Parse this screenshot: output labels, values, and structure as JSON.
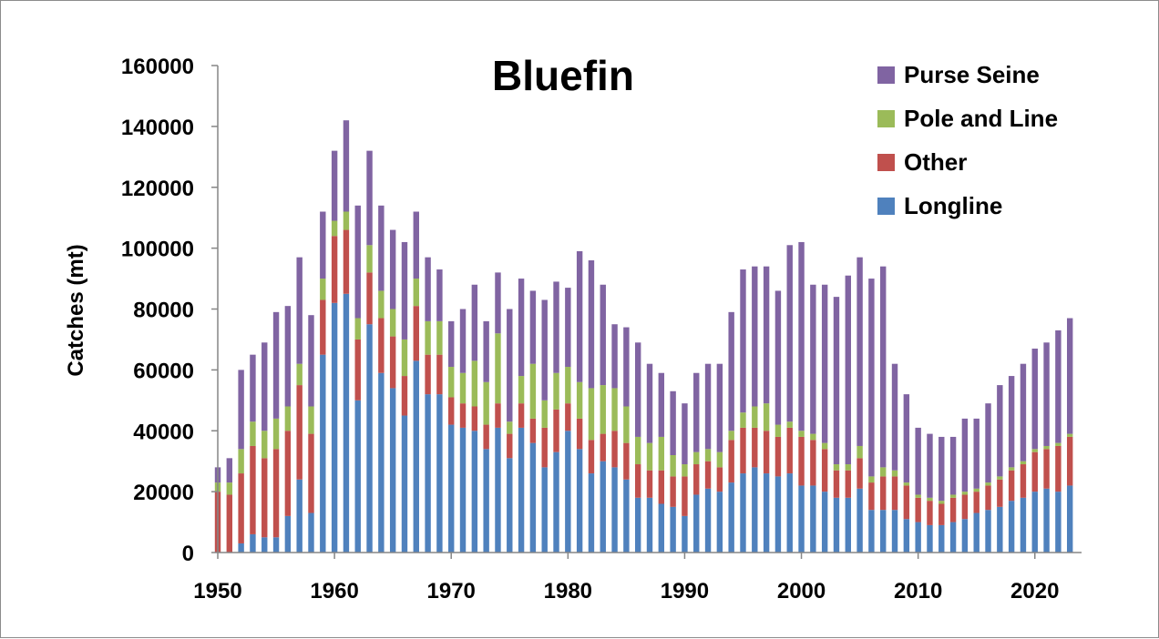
{
  "chart_data": {
    "type": "bar",
    "stacked": true,
    "title": "Bluefin",
    "xlabel": "",
    "ylabel": "Catches (mt)",
    "ylim": [
      0,
      160000
    ],
    "y_ticks": [
      "0",
      "20000",
      "40000",
      "60000",
      "80000",
      "100000",
      "120000",
      "140000",
      "160000"
    ],
    "x_ticks": [
      "1950",
      "1960",
      "1970",
      "1980",
      "1990",
      "2000",
      "2010",
      "2020"
    ],
    "grid": false,
    "legend_position": "top-right",
    "x": [
      1950,
      1951,
      1952,
      1953,
      1954,
      1955,
      1956,
      1957,
      1958,
      1959,
      1960,
      1961,
      1962,
      1963,
      1964,
      1965,
      1966,
      1967,
      1968,
      1969,
      1970,
      1971,
      1972,
      1973,
      1974,
      1975,
      1976,
      1977,
      1978,
      1979,
      1980,
      1981,
      1982,
      1983,
      1984,
      1985,
      1986,
      1987,
      1988,
      1989,
      1990,
      1991,
      1992,
      1993,
      1994,
      1995,
      1996,
      1997,
      1998,
      1999,
      2000,
      2001,
      2002,
      2003,
      2004,
      2005,
      2006,
      2007,
      2008,
      2009,
      2010,
      2011,
      2012,
      2013,
      2014,
      2015,
      2016,
      2017,
      2018,
      2019,
      2020,
      2021,
      2022,
      2023
    ],
    "series": [
      {
        "name": "Longline",
        "color": "#4f81bd",
        "values": [
          0,
          0,
          3000,
          6000,
          5000,
          5000,
          12000,
          24000,
          13000,
          65000,
          82000,
          85000,
          50000,
          75000,
          59000,
          54000,
          45000,
          63000,
          52000,
          52000,
          42000,
          41000,
          40000,
          34000,
          41000,
          31000,
          41000,
          36000,
          28000,
          33000,
          40000,
          34000,
          26000,
          30000,
          28000,
          24000,
          18000,
          18000,
          16000,
          15000,
          12000,
          19000,
          21000,
          20000,
          23000,
          26000,
          28000,
          26000,
          25000,
          26000,
          22000,
          22000,
          20000,
          18000,
          18000,
          21000,
          14000,
          14000,
          14000,
          11000,
          10000,
          9000,
          9000,
          10000,
          11000,
          13000,
          14000,
          15000,
          17000,
          18000,
          20000,
          21000,
          20000,
          22000
        ]
      },
      {
        "name": "Other",
        "color": "#c0504d",
        "values": [
          20000,
          19000,
          23000,
          29000,
          26000,
          29000,
          28000,
          31000,
          26000,
          18000,
          22000,
          21000,
          20000,
          17000,
          18000,
          17000,
          13000,
          18000,
          13000,
          13000,
          9000,
          8000,
          8000,
          8000,
          8000,
          8000,
          8000,
          8000,
          13000,
          14000,
          9000,
          10000,
          11000,
          9000,
          12000,
          12000,
          11000,
          9000,
          11000,
          10000,
          13000,
          10000,
          9000,
          8000,
          14000,
          15000,
          13000,
          14000,
          13000,
          15000,
          16000,
          15000,
          14000,
          9000,
          9000,
          10000,
          9000,
          11000,
          11000,
          11000,
          8000,
          8000,
          7000,
          8000,
          8000,
          7000,
          8000,
          9000,
          10000,
          11000,
          13000,
          13000,
          15000,
          16000
        ]
      },
      {
        "name": "Pole and Line",
        "color": "#9bbb59",
        "values": [
          3000,
          4000,
          8000,
          8000,
          9000,
          10000,
          8000,
          7000,
          9000,
          7000,
          5000,
          6000,
          7000,
          9000,
          9000,
          9000,
          12000,
          9000,
          11000,
          11000,
          10000,
          10000,
          15000,
          14000,
          23000,
          4000,
          9000,
          18000,
          9000,
          12000,
          12000,
          12000,
          17000,
          16000,
          14000,
          12000,
          9000,
          9000,
          11000,
          7000,
          4000,
          4000,
          4000,
          5000,
          3000,
          5000,
          7000,
          9000,
          4000,
          2000,
          2000,
          2000,
          2000,
          2000,
          2000,
          4000,
          2000,
          3000,
          2000,
          1000,
          1000,
          1000,
          1000,
          1000,
          1000,
          1000,
          1000,
          1000,
          1000,
          1000,
          1000,
          1000,
          1000,
          1000
        ]
      },
      {
        "name": "Purse Seine",
        "color": "#8064a2",
        "values": [
          5000,
          8000,
          26000,
          22000,
          29000,
          35000,
          33000,
          35000,
          30000,
          22000,
          23000,
          30000,
          37000,
          31000,
          28000,
          26000,
          32000,
          22000,
          21000,
          17000,
          15000,
          21000,
          25000,
          20000,
          20000,
          37000,
          32000,
          24000,
          33000,
          30000,
          26000,
          43000,
          42000,
          33000,
          21000,
          26000,
          31000,
          26000,
          21000,
          21000,
          20000,
          26000,
          28000,
          29000,
          39000,
          47000,
          46000,
          45000,
          44000,
          58000,
          62000,
          49000,
          52000,
          55000,
          62000,
          62000,
          65000,
          66000,
          35000,
          29000,
          22000,
          21000,
          21000,
          19000,
          24000,
          23000,
          26000,
          30000,
          30000,
          32000,
          33000,
          34000,
          37000,
          38000
        ]
      }
    ]
  }
}
